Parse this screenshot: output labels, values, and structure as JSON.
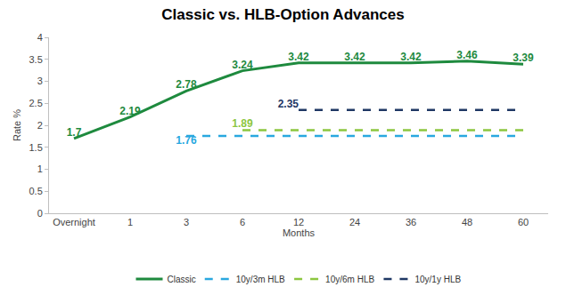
{
  "chart_data": {
    "type": "line",
    "title": "Classic vs. HLB-Option Advances",
    "x_label": "Months",
    "y_label": "Rate %",
    "categories": [
      "Overnight",
      "1",
      "3",
      "6",
      "12",
      "24",
      "36",
      "48",
      "60"
    ],
    "series": [
      {
        "name": "Classic",
        "color": "#1e8a3e",
        "line_style": "solid",
        "data_labels": true,
        "values": [
          1.7,
          2.19,
          2.78,
          3.24,
          3.42,
          3.42,
          3.42,
          3.46,
          3.39
        ]
      },
      {
        "name": "10y/3m HLB",
        "color": "#29a8df",
        "line_style": "dash",
        "data_labels": true,
        "values": [
          null,
          null,
          1.76,
          1.76,
          1.76,
          1.76,
          1.76,
          1.76,
          1.76
        ],
        "value_labels": [
          null,
          null,
          "1.76",
          null,
          null,
          null,
          null,
          null,
          null
        ]
      },
      {
        "name": "10y/6m HLB",
        "color": "#8cc63f",
        "line_style": "dash",
        "data_labels": true,
        "values": [
          null,
          null,
          null,
          1.89,
          1.89,
          1.89,
          1.89,
          1.89,
          1.89
        ],
        "value_labels": [
          null,
          null,
          null,
          "1.89",
          null,
          null,
          null,
          null,
          null
        ]
      },
      {
        "name": "10y/1y HLB",
        "color": "#1f3864",
        "line_style": "dash",
        "data_labels": true,
        "values": [
          null,
          null,
          null,
          null,
          2.35,
          2.35,
          2.35,
          2.35,
          2.35
        ],
        "value_labels": [
          null,
          null,
          null,
          null,
          "2.35",
          null,
          null,
          null,
          null
        ]
      }
    ],
    "ylim": [
      0,
      4
    ],
    "yticks": [
      0,
      0.5,
      1,
      1.5,
      2,
      2.5,
      3,
      3.5,
      4
    ],
    "grid": false,
    "legend": "bottom"
  }
}
